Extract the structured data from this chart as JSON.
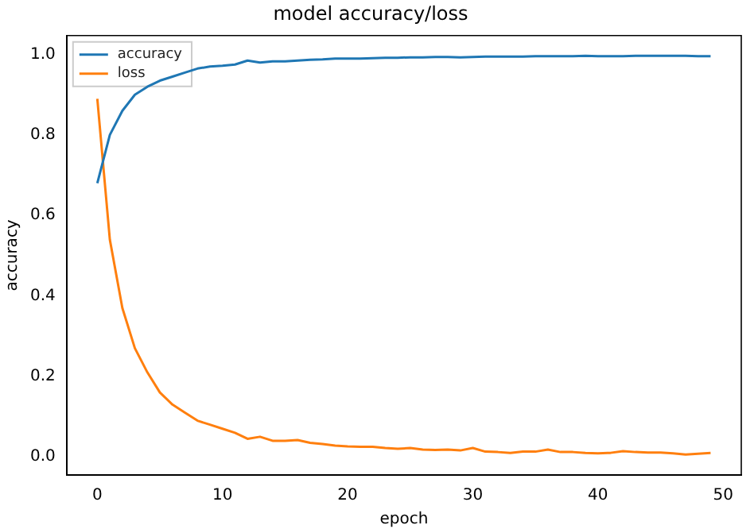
{
  "chart_data": {
    "type": "line",
    "title": "model accuracy/loss",
    "xlabel": "epoch",
    "ylabel": "accuracy",
    "x": [
      0,
      1,
      2,
      3,
      4,
      5,
      6,
      7,
      8,
      9,
      10,
      11,
      12,
      13,
      14,
      15,
      16,
      17,
      18,
      19,
      20,
      21,
      22,
      23,
      24,
      25,
      26,
      27,
      28,
      29,
      30,
      31,
      32,
      33,
      34,
      35,
      36,
      37,
      38,
      39,
      40,
      41,
      42,
      43,
      44,
      45,
      46,
      47,
      48,
      49
    ],
    "series": [
      {
        "name": "accuracy",
        "color": "#1f77b4",
        "values": [
          0.68,
          0.8,
          0.86,
          0.9,
          0.92,
          0.935,
          0.945,
          0.955,
          0.965,
          0.97,
          0.972,
          0.975,
          0.985,
          0.98,
          0.983,
          0.983,
          0.985,
          0.987,
          0.988,
          0.99,
          0.99,
          0.99,
          0.991,
          0.992,
          0.992,
          0.993,
          0.993,
          0.994,
          0.994,
          0.993,
          0.994,
          0.995,
          0.995,
          0.995,
          0.995,
          0.996,
          0.996,
          0.996,
          0.996,
          0.997,
          0.996,
          0.996,
          0.996,
          0.997,
          0.997,
          0.997,
          0.997,
          0.997,
          0.996,
          0.996
        ]
      },
      {
        "name": "loss",
        "color": "#ff7f0e",
        "values": [
          0.89,
          0.54,
          0.37,
          0.27,
          0.21,
          0.16,
          0.13,
          0.11,
          0.09,
          0.08,
          0.07,
          0.06,
          0.045,
          0.05,
          0.04,
          0.04,
          0.042,
          0.035,
          0.032,
          0.028,
          0.026,
          0.025,
          0.025,
          0.022,
          0.02,
          0.022,
          0.018,
          0.017,
          0.018,
          0.016,
          0.022,
          0.013,
          0.012,
          0.01,
          0.013,
          0.013,
          0.018,
          0.012,
          0.012,
          0.01,
          0.009,
          0.01,
          0.014,
          0.012,
          0.011,
          0.011,
          0.009,
          0.006,
          0.008,
          0.01
        ]
      }
    ],
    "xlim": [
      -2.45,
      51.45
    ],
    "xticks": [
      0,
      10,
      20,
      30,
      40,
      50
    ],
    "ylim": [
      -0.045,
      1.047
    ],
    "yticks": [
      {
        "value": 0,
        "label": "0.0"
      },
      0.2,
      0.4,
      0.6,
      0.8,
      {
        "value": 1,
        "label": "1.0"
      }
    ],
    "grid": false,
    "legend": "top left",
    "marker": "none",
    "line_style": "solid"
  }
}
